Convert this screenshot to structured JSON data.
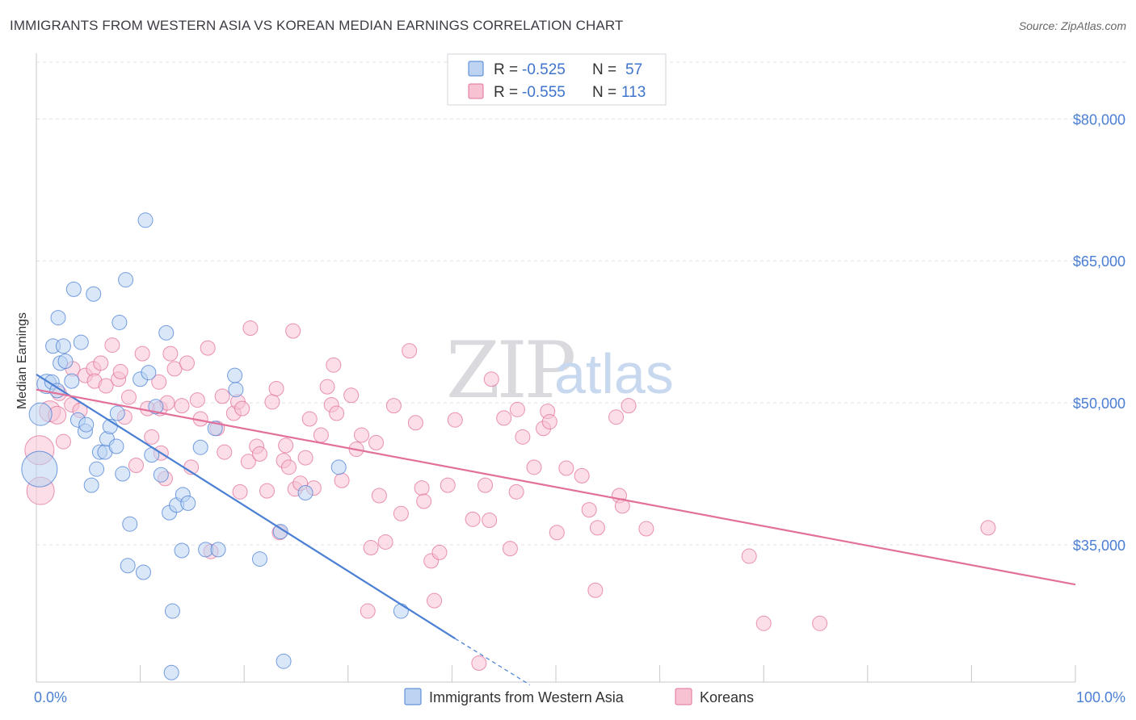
{
  "title": "IMMIGRANTS FROM WESTERN ASIA VS KOREAN MEDIAN EARNINGS CORRELATION CHART",
  "source": "Source: ZipAtlas.com",
  "watermark": {
    "zip": "ZIP",
    "atlas": "atlas"
  },
  "legend": {
    "r_label": "R =",
    "n_label": "N =",
    "rows": [
      {
        "r": "-0.525",
        "n": "57",
        "color": "#4a7fd4"
      },
      {
        "r": "-0.555",
        "n": "113",
        "color": "#e2709a"
      }
    ]
  },
  "colors": {
    "blue": "#4a7fd4",
    "pink": "#e2709a",
    "blue_fill": "#bcd3f2",
    "pink_fill": "#f7c3d3",
    "grid": "#e0e0e6"
  },
  "chart_data": {
    "type": "scatter",
    "title": "IMMIGRANTS FROM WESTERN ASIA VS KOREAN MEDIAN EARNINGS CORRELATION CHART",
    "xlabel": "",
    "ylabel": "Median Earnings",
    "xlim": [
      0,
      100
    ],
    "ylim": [
      20500,
      86000
    ],
    "x_tick_labels": [
      "0.0%",
      "100.0%"
    ],
    "y_ticks": [
      35000,
      50000,
      65000,
      80000
    ],
    "y_tick_labels": [
      "$35,000",
      "$50,000",
      "$65,000",
      "$80,000"
    ],
    "grid": true,
    "legend_position": "top-center",
    "series": [
      {
        "name": "Immigrants from Western Asia",
        "color": "#4a7fd4",
        "points": [
          [
            0.3,
            43000,
            22
          ],
          [
            0.4,
            48800,
            14
          ],
          [
            1.0,
            52000,
            12
          ],
          [
            1.5,
            52200,
            9
          ],
          [
            1.6,
            56000,
            9
          ],
          [
            2.0,
            51300,
            9
          ],
          [
            2.1,
            59000,
            9
          ],
          [
            2.3,
            54200,
            9
          ],
          [
            2.6,
            56000,
            9
          ],
          [
            2.8,
            54400,
            9
          ],
          [
            3.4,
            52300,
            9
          ],
          [
            3.6,
            62000,
            9
          ],
          [
            4.0,
            48200,
            9
          ],
          [
            4.3,
            56400,
            9
          ],
          [
            4.7,
            47000,
            9
          ],
          [
            4.8,
            47700,
            9
          ],
          [
            5.3,
            41300,
            9
          ],
          [
            5.5,
            61500,
            9
          ],
          [
            5.8,
            43000,
            9
          ],
          [
            6.1,
            44800,
            9
          ],
          [
            6.6,
            44800,
            9
          ],
          [
            6.8,
            46200,
            9
          ],
          [
            7.1,
            47500,
            9
          ],
          [
            7.7,
            45400,
            9
          ],
          [
            7.8,
            48900,
            9
          ],
          [
            8.0,
            58500,
            9
          ],
          [
            8.3,
            42500,
            9
          ],
          [
            8.6,
            63000,
            9
          ],
          [
            8.8,
            32800,
            9
          ],
          [
            9.0,
            37200,
            9
          ],
          [
            10.0,
            52500,
            9
          ],
          [
            10.3,
            32100,
            9
          ],
          [
            10.5,
            69300,
            9
          ],
          [
            10.8,
            53200,
            9
          ],
          [
            11.1,
            44500,
            9
          ],
          [
            11.5,
            49600,
            9
          ],
          [
            12.0,
            42400,
            9
          ],
          [
            12.5,
            57400,
            9
          ],
          [
            12.8,
            38400,
            9
          ],
          [
            13.0,
            21500,
            9
          ],
          [
            13.1,
            28000,
            9
          ],
          [
            13.5,
            39200,
            9
          ],
          [
            14.0,
            34400,
            9
          ],
          [
            14.1,
            40300,
            9
          ],
          [
            14.6,
            39400,
            9
          ],
          [
            15.8,
            45300,
            9
          ],
          [
            16.3,
            34500,
            9
          ],
          [
            17.2,
            47300,
            9
          ],
          [
            17.5,
            34500,
            9
          ],
          [
            19.1,
            52900,
            9
          ],
          [
            19.2,
            51400,
            9
          ],
          [
            21.5,
            33500,
            9
          ],
          [
            23.5,
            36400,
            9
          ],
          [
            23.8,
            22700,
            9
          ],
          [
            25.9,
            40500,
            9
          ],
          [
            29.1,
            43200,
            9
          ],
          [
            35.1,
            28000,
            9
          ]
        ]
      },
      {
        "name": "Koreans",
        "color": "#e2709a",
        "points": [
          [
            0.3,
            45000,
            18
          ],
          [
            0.4,
            40700,
            17
          ],
          [
            1.3,
            49100,
            13
          ],
          [
            2.0,
            48700,
            11
          ],
          [
            2.2,
            51000,
            9
          ],
          [
            2.6,
            45900,
            9
          ],
          [
            3.4,
            49800,
            9
          ],
          [
            3.5,
            53600,
            9
          ],
          [
            4.2,
            49200,
            9
          ],
          [
            4.7,
            52900,
            9
          ],
          [
            5.5,
            53600,
            9
          ],
          [
            5.6,
            52300,
            9
          ],
          [
            6.2,
            54200,
            9
          ],
          [
            6.7,
            51800,
            9
          ],
          [
            7.3,
            56100,
            9
          ],
          [
            7.9,
            52500,
            9
          ],
          [
            8.1,
            53300,
            9
          ],
          [
            8.5,
            48500,
            9
          ],
          [
            8.9,
            50600,
            9
          ],
          [
            9.6,
            43400,
            9
          ],
          [
            10.2,
            55200,
            9
          ],
          [
            10.7,
            49400,
            9
          ],
          [
            11.1,
            46400,
            9
          ],
          [
            11.8,
            52200,
            9
          ],
          [
            11.9,
            49400,
            9
          ],
          [
            12.0,
            44700,
            9
          ],
          [
            12.4,
            42000,
            9
          ],
          [
            12.6,
            50000,
            9
          ],
          [
            12.9,
            55200,
            9
          ],
          [
            13.3,
            53600,
            9
          ],
          [
            14.0,
            49700,
            9
          ],
          [
            14.5,
            54200,
            9
          ],
          [
            14.9,
            43200,
            9
          ],
          [
            15.5,
            50300,
            9
          ],
          [
            15.8,
            48300,
            9
          ],
          [
            16.5,
            55800,
            9
          ],
          [
            16.8,
            34300,
            9
          ],
          [
            17.4,
            47300,
            9
          ],
          [
            17.9,
            50700,
            9
          ],
          [
            18.1,
            44800,
            9
          ],
          [
            19.0,
            48900,
            9
          ],
          [
            19.4,
            50100,
            9
          ],
          [
            19.6,
            40600,
            9
          ],
          [
            19.8,
            49400,
            9
          ],
          [
            20.4,
            43800,
            9
          ],
          [
            20.6,
            57900,
            9
          ],
          [
            21.2,
            45400,
            9
          ],
          [
            21.5,
            44600,
            9
          ],
          [
            22.2,
            40700,
            9
          ],
          [
            22.7,
            50100,
            9
          ],
          [
            23.1,
            51500,
            9
          ],
          [
            23.4,
            36300,
            9
          ],
          [
            23.8,
            43900,
            9
          ],
          [
            24.0,
            45500,
            9
          ],
          [
            24.3,
            43200,
            9
          ],
          [
            24.7,
            57600,
            9
          ],
          [
            24.9,
            40900,
            9
          ],
          [
            25.4,
            41500,
            9
          ],
          [
            25.9,
            44200,
            9
          ],
          [
            26.3,
            48300,
            9
          ],
          [
            26.7,
            41000,
            9
          ],
          [
            27.4,
            46600,
            9
          ],
          [
            28.0,
            51700,
            9
          ],
          [
            28.4,
            49800,
            9
          ],
          [
            28.6,
            54000,
            9
          ],
          [
            28.9,
            48900,
            9
          ],
          [
            29.4,
            41800,
            9
          ],
          [
            30.3,
            50800,
            9
          ],
          [
            30.8,
            45100,
            9
          ],
          [
            31.3,
            46600,
            9
          ],
          [
            31.9,
            28000,
            9
          ],
          [
            32.2,
            34700,
            9
          ],
          [
            32.7,
            45800,
            9
          ],
          [
            33.0,
            40200,
            9
          ],
          [
            33.6,
            35300,
            9
          ],
          [
            34.4,
            49700,
            9
          ],
          [
            35.1,
            38300,
            9
          ],
          [
            35.9,
            55500,
            9
          ],
          [
            36.5,
            47900,
            9
          ],
          [
            37.1,
            41000,
            9
          ],
          [
            37.3,
            39600,
            9
          ],
          [
            38.0,
            33300,
            9
          ],
          [
            38.3,
            29100,
            9
          ],
          [
            38.8,
            34200,
            9
          ],
          [
            39.6,
            41300,
            9
          ],
          [
            40.3,
            48200,
            9
          ],
          [
            42.0,
            37700,
            9
          ],
          [
            42.6,
            22500,
            9
          ],
          [
            43.2,
            41300,
            9
          ],
          [
            43.6,
            37600,
            9
          ],
          [
            43.8,
            52500,
            9
          ],
          [
            45.0,
            48400,
            9
          ],
          [
            45.6,
            34600,
            9
          ],
          [
            46.2,
            40600,
            9
          ],
          [
            46.3,
            49300,
            9
          ],
          [
            46.8,
            46400,
            9
          ],
          [
            47.9,
            43200,
            9
          ],
          [
            48.8,
            47300,
            9
          ],
          [
            49.2,
            49100,
            9
          ],
          [
            49.4,
            48000,
            9
          ],
          [
            50.1,
            36300,
            9
          ],
          [
            51.0,
            43100,
            9
          ],
          [
            52.5,
            42300,
            9
          ],
          [
            53.2,
            38700,
            9
          ],
          [
            53.8,
            30200,
            9
          ],
          [
            54.0,
            36800,
            9
          ],
          [
            55.8,
            48500,
            9
          ],
          [
            56.1,
            40200,
            9
          ],
          [
            56.4,
            39100,
            9
          ],
          [
            57.0,
            49700,
            9
          ],
          [
            58.7,
            36700,
            9
          ],
          [
            68.6,
            33800,
            9
          ],
          [
            70.0,
            26700,
            9
          ],
          [
            75.4,
            26700,
            9
          ],
          [
            91.6,
            36800,
            9
          ]
        ]
      }
    ],
    "trendlines": [
      {
        "series": "Immigrants from Western Asia",
        "x0": 0,
        "y0": 53000,
        "x1": 40.3,
        "y1": 25100,
        "dashed_to_x": 47.5,
        "dashed_to_y": 20200
      },
      {
        "series": "Koreans",
        "x0": 0,
        "y0": 51400,
        "x1": 100,
        "y1": 30800
      }
    ]
  }
}
